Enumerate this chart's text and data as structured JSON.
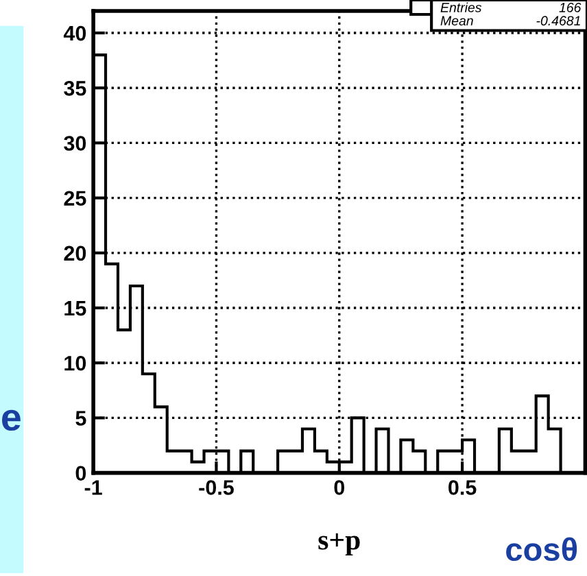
{
  "chart_data": {
    "type": "histogram",
    "bins": [
      -1,
      -0.95,
      -0.9,
      -0.85,
      -0.8,
      -0.75,
      -0.7,
      -0.65,
      -0.6,
      -0.55,
      -0.5,
      -0.45,
      -0.4,
      -0.35,
      -0.3,
      -0.25,
      -0.2,
      -0.15,
      -0.1,
      -0.05,
      0,
      0.05,
      0.1,
      0.15,
      0.2,
      0.25,
      0.3,
      0.35,
      0.4,
      0.45,
      0.5,
      0.55,
      0.6,
      0.65,
      0.7,
      0.75,
      0.8,
      0.85,
      0.9
    ],
    "values": [
      38,
      19,
      13,
      17,
      9,
      6,
      2,
      2,
      1,
      2,
      2,
      0,
      2,
      0,
      0,
      2,
      2,
      4,
      2,
      1,
      1,
      5,
      0,
      4,
      0,
      3,
      2,
      0,
      2,
      2,
      3,
      0,
      0,
      4,
      2,
      2,
      7,
      4
    ],
    "color": "#000000",
    "xlabel": "s+p",
    "xlim": [
      -1,
      1
    ],
    "xticks": [
      -1,
      -0.5,
      0,
      0.5
    ],
    "ylim": [
      0,
      42
    ],
    "yticks": [
      0,
      5,
      10,
      15,
      20,
      25,
      30,
      35,
      40
    ],
    "grid": true,
    "line_style": "dotted",
    "annotations": [
      "Entries",
      "166",
      "Mean",
      "-0.4681",
      "cosθ",
      "e"
    ]
  }
}
